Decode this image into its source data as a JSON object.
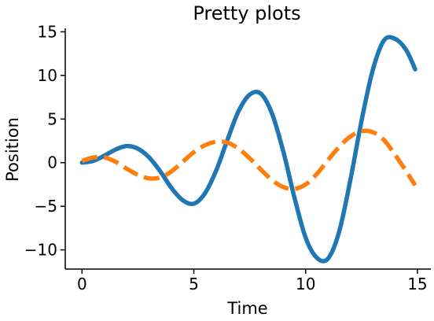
{
  "chart_data": {
    "type": "line",
    "title": "Pretty plots",
    "xlabel": "Time",
    "ylabel": "Position",
    "xlim": [
      -0.75,
      15.6
    ],
    "ylim": [
      -12.2,
      15.4
    ],
    "xticks": [
      0,
      5,
      10,
      15
    ],
    "yticks": [
      -10,
      -5,
      0,
      5,
      10,
      15
    ],
    "tick_labels_x": [
      "0",
      "5",
      "10",
      "15"
    ],
    "tick_labels_y": [
      "−10",
      "−5",
      "0",
      "5",
      "10",
      "15"
    ],
    "grid": false,
    "legend": "none",
    "series": [
      {
        "style": "solid",
        "color": "#1f77b4",
        "x": [
          0,
          0.5,
          1,
          1.5,
          2,
          2.5,
          3,
          3.5,
          4,
          4.5,
          5,
          5.5,
          6,
          6.5,
          7,
          7.5,
          8,
          8.5,
          9,
          9.5,
          10,
          10.5,
          11,
          11.5,
          12,
          12.5,
          13,
          13.5,
          14,
          14.5,
          14.9
        ],
        "y": [
          0,
          0.2,
          0.8,
          1.5,
          1.9,
          1.6,
          0.6,
          -1.0,
          -2.9,
          -4.3,
          -4.7,
          -3.5,
          -0.9,
          2.6,
          5.9,
          7.8,
          7.9,
          5.6,
          1.3,
          -4.0,
          -8.6,
          -10.9,
          -11.0,
          -7.9,
          -2.0,
          4.8,
          10.6,
          14.0,
          14.2,
          12.9,
          10.7
        ]
      },
      {
        "style": "dashed",
        "color": "#ff7f0e",
        "x": [
          0,
          0.5,
          1,
          1.5,
          2,
          2.5,
          3,
          3.5,
          4,
          4.5,
          5,
          5.5,
          6,
          6.5,
          7,
          7.5,
          8,
          8.5,
          9,
          9.5,
          10,
          10.5,
          11,
          11.5,
          12,
          12.5,
          13,
          13.5,
          14,
          14.5,
          14.9
        ],
        "y": [
          0.2,
          0.6,
          0.6,
          0.1,
          -0.7,
          -1.4,
          -1.8,
          -1.7,
          -1.0,
          0.1,
          1.2,
          2.0,
          2.4,
          2.3,
          1.6,
          0.5,
          -0.8,
          -2.0,
          -2.8,
          -3.0,
          -2.5,
          -1.3,
          0.3,
          1.8,
          3.0,
          3.6,
          3.5,
          2.6,
          0.9,
          -1.0,
          -2.6
        ]
      }
    ]
  }
}
